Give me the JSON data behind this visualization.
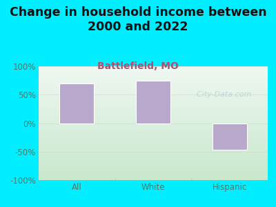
{
  "title": "Change in household income between\n2000 and 2022",
  "subtitle": "Battlefield, MO",
  "categories": [
    "All",
    "White",
    "Hispanic"
  ],
  "values": [
    70,
    75,
    -47
  ],
  "bar_color": "#b8a8cc",
  "bar_edge_color": "#ffffff",
  "title_fontsize": 12.5,
  "subtitle_fontsize": 10,
  "subtitle_color": "#b05070",
  "title_color": "#111111",
  "background_color": "#00eeff",
  "plot_bg_top": "#f0f8f2",
  "plot_bg_bottom": "#c8e8cc",
  "ylim": [
    -100,
    100
  ],
  "yticks": [
    -100,
    -50,
    0,
    50,
    100
  ],
  "ytick_labels": [
    "-100%",
    "-50%",
    "0%",
    "50%",
    "100%"
  ],
  "tick_color": "#557766",
  "watermark": "  City-Data.com",
  "watermark_color": "#aabbcc",
  "watermark_alpha": 0.55
}
